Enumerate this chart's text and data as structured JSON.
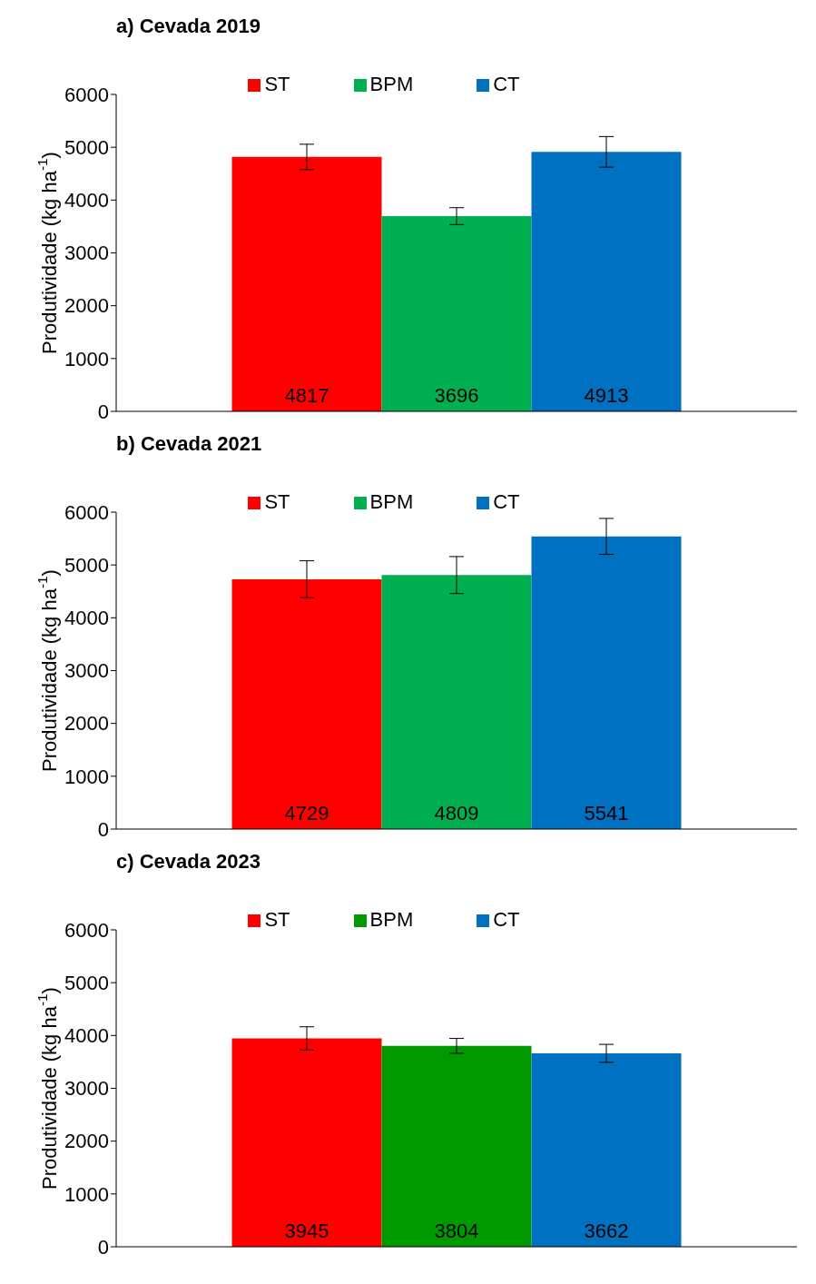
{
  "chart_data": [
    {
      "type": "bar",
      "title": "a) Cevada 2019",
      "ylabel": "Produtividade (kg ha$^{-1}$)",
      "categories": [
        null
      ],
      "series": [
        {
          "name": "ST",
          "color": "#ff0000",
          "values": [
            4817
          ],
          "errors": [
            240
          ]
        },
        {
          "name": "BPM",
          "color": "#00b050",
          "values": [
            3696
          ],
          "errors": [
            160
          ]
        },
        {
          "name": "CT",
          "color": "#0070c0",
          "values": [
            4913
          ],
          "errors": [
            290
          ]
        }
      ],
      "ylim": [
        0,
        6000
      ],
      "yticks": [
        0,
        1000,
        2000,
        3000,
        4000,
        5000,
        6000
      ],
      "grid": false,
      "legend": "top",
      "data_labels": true,
      "tick_labels": "y"
    },
    {
      "type": "bar",
      "title": "b) Cevada 2021",
      "ylabel": "Produtividade (kg ha$^{-1}$)",
      "categories": [
        null
      ],
      "series": [
        {
          "name": "ST",
          "color": "#ff0000",
          "values": [
            4729
          ],
          "errors": [
            350
          ]
        },
        {
          "name": "BPM",
          "color": "#00b050",
          "values": [
            4809
          ],
          "errors": [
            350
          ]
        },
        {
          "name": "CT",
          "color": "#0070c0",
          "values": [
            5541
          ],
          "errors": [
            340
          ]
        }
      ],
      "ylim": [
        0,
        6000
      ],
      "yticks": [
        0,
        1000,
        2000,
        3000,
        4000,
        5000,
        6000
      ],
      "grid": false,
      "legend": "top",
      "data_labels": true,
      "tick_labels": "y"
    },
    {
      "type": "bar",
      "title": "c) Cevada 2023",
      "ylabel": "Produtividade (kg ha$^{-1}$)",
      "categories": [
        null
      ],
      "series": [
        {
          "name": "ST",
          "color": "#ff0000",
          "values": [
            3945
          ],
          "errors": [
            220
          ]
        },
        {
          "name": "BPM",
          "color": "#009900",
          "values": [
            3804
          ],
          "errors": [
            140
          ]
        },
        {
          "name": "CT",
          "color": "#0070c0",
          "values": [
            3662
          ],
          "errors": [
            170
          ]
        }
      ],
      "ylim": [
        0,
        6000
      ],
      "yticks": [
        0,
        1000,
        2000,
        3000,
        4000,
        5000,
        6000
      ],
      "grid": false,
      "legend": "top",
      "data_labels": true,
      "tick_labels": "y"
    }
  ]
}
